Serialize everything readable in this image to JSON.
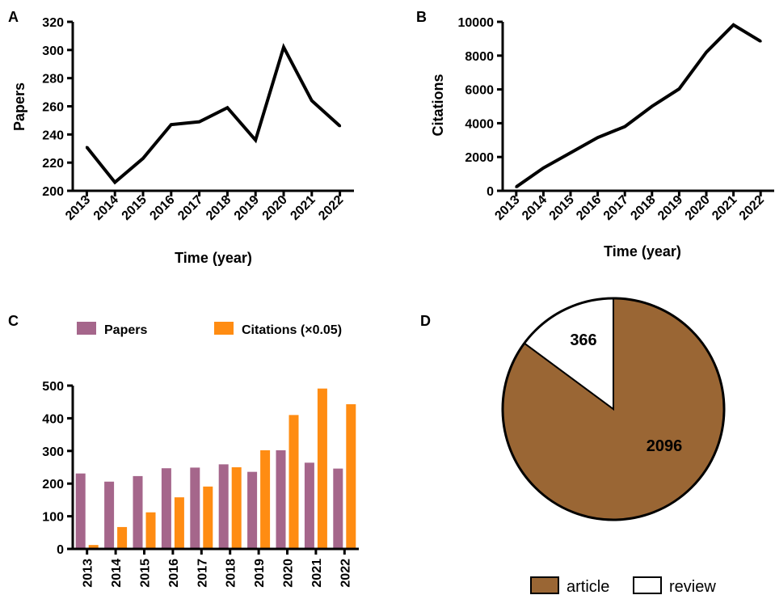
{
  "panels": {
    "a": "A",
    "b": "B",
    "c": "C",
    "d": "D"
  },
  "chart_data": [
    {
      "id": "A",
      "type": "line",
      "x": [
        "2013",
        "2014",
        "2015",
        "2016",
        "2017",
        "2018",
        "2019",
        "2020",
        "2021",
        "2022"
      ],
      "series": [
        {
          "values": [
            231,
            206,
            223,
            247,
            249,
            259,
            236,
            302,
            264,
            246
          ]
        }
      ],
      "xlabel": "Time (year)",
      "ylabel": "Papers",
      "ylim": [
        200,
        320
      ],
      "yticks": [
        "200",
        "220",
        "240",
        "260",
        "280",
        "300",
        "320"
      ],
      "color": "#000000",
      "grid": false
    },
    {
      "id": "B",
      "type": "line",
      "x": [
        "2013",
        "2014",
        "2015",
        "2016",
        "2017",
        "2018",
        "2019",
        "2020",
        "2021",
        "2022"
      ],
      "series": [
        {
          "values": [
            230,
            1350,
            2250,
            3150,
            3800,
            5000,
            6030,
            8200,
            9820,
            8850
          ]
        }
      ],
      "xlabel": "Time (year)",
      "ylabel": "Citations",
      "ylim": [
        0,
        10000
      ],
      "yticks": [
        "0",
        "2000",
        "4000",
        "6000",
        "8000",
        "10000"
      ],
      "color": "#000000",
      "grid": false
    },
    {
      "id": "C",
      "type": "bar",
      "categories": [
        "2013",
        "2014",
        "2015",
        "2016",
        "2017",
        "2018",
        "2019",
        "2020",
        "2021",
        "2022"
      ],
      "series": [
        {
          "name": "Papers",
          "color": "#A5668B",
          "values": [
            231,
            206,
            223,
            247,
            249,
            259,
            236,
            302,
            264,
            246
          ]
        },
        {
          "name": "Citations (×0.05)",
          "color": "#FF8C12",
          "values": [
            12,
            67,
            112,
            158,
            191,
            250,
            302,
            410,
            491,
            443
          ]
        }
      ],
      "ylim": [
        0,
        500
      ],
      "yticks": [
        "0",
        "100",
        "200",
        "300",
        "400",
        "500"
      ],
      "legend": "top",
      "grid": false
    },
    {
      "id": "D",
      "type": "pie",
      "slices": [
        {
          "label": "article",
          "value": 2096,
          "display": "2096",
          "color": "#9A6634"
        },
        {
          "label": "review",
          "value": 366,
          "display": "366",
          "color": "#FFFFFF"
        }
      ],
      "legend": "bottom"
    }
  ]
}
